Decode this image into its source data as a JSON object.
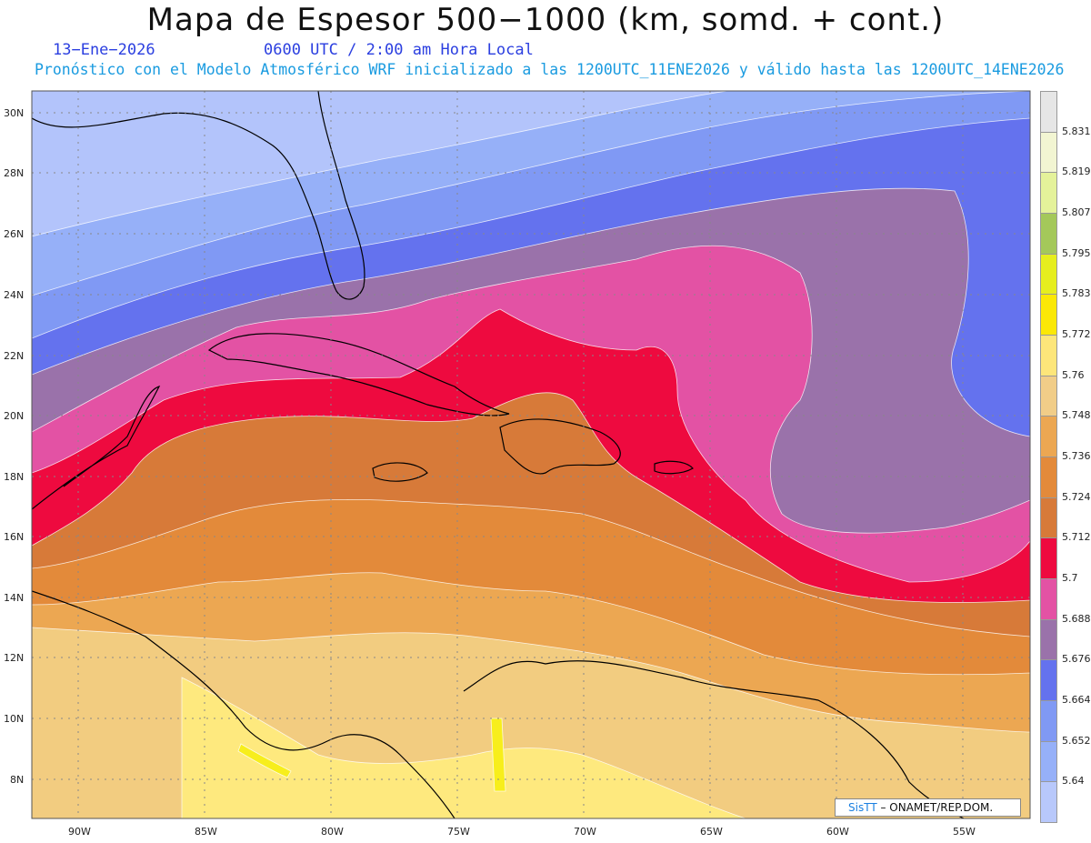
{
  "title": "Mapa de Espesor 500−1000 (km, somd. + cont.)",
  "subtitle": {
    "date": "13−Ene−2026",
    "time": "0600 UTC / 2:00 am Hora Local",
    "model": "Pronóstico con el Modelo Atmosférico WRF inicializado a las 1200UTC_11ENE2026 y válido hasta las  1200UTC_14ENE2026"
  },
  "map": {
    "lat_labels": [
      "30N",
      "28N",
      "26N",
      "24N",
      "22N",
      "20N",
      "18N",
      "16N",
      "14N",
      "12N",
      "10N",
      "8N"
    ],
    "lon_labels": [
      "90W",
      "85W",
      "80W",
      "75W",
      "70W",
      "65W",
      "60W",
      "55W"
    ],
    "colors": {
      "ocean_cold": "#b3c4fb",
      "c5652": "#96b0f8",
      "c5664": "#8099f4",
      "c5676": "#6472ee",
      "c5688": "#9a72aa",
      "c5700": "#e352a4",
      "c5712": "#ee0a3f",
      "c5724": "#d77a39",
      "c5736": "#e38a3a",
      "c5748": "#eca752",
      "c5760": "#f2cc80",
      "c5772": "#fee97e",
      "c5783": "#f7ee1c"
    }
  },
  "legend": {
    "labels": [
      "5.831",
      "5.819",
      "5.807",
      "5.795",
      "5.783",
      "5.772",
      "5.76",
      "5.748",
      "5.736",
      "5.724",
      "5.712",
      "5.7",
      "5.688",
      "5.676",
      "5.664",
      "5.652",
      "5.64"
    ],
    "colors": [
      "#e6e6e6",
      "#f2f5d2",
      "#e4f29a",
      "#a4c85a",
      "#e6ee1e",
      "#fbe806",
      "#fde67a",
      "#f1cd88",
      "#eca752",
      "#e38a3a",
      "#d77a39",
      "#ee0a3f",
      "#e352a4",
      "#9a72aa",
      "#6472ee",
      "#8099f4",
      "#96b0f8",
      "#b8c8fb"
    ]
  },
  "credit": {
    "brand": "SisTT",
    "org": " – ONAMET/REP.DOM."
  }
}
